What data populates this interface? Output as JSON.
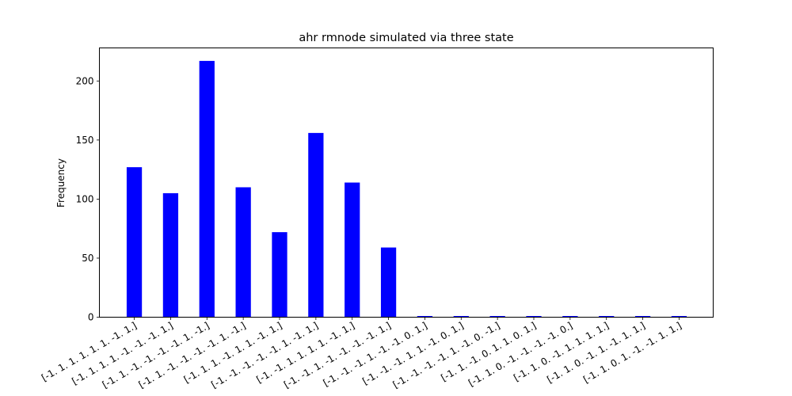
{
  "chart_data": {
    "type": "bar",
    "title": "ahr rmnode simulated via three state",
    "xlabel": "",
    "ylabel": "Frequency",
    "ylim": [
      0,
      228
    ],
    "yticks": [
      0,
      50,
      100,
      150,
      200
    ],
    "bar_color": "#0000ff",
    "grid": false,
    "legend": "none",
    "categories": [
      "[-1. 1. 1. 1. 1. 1. -1. 1.]",
      "[-1. 1. 1. 1. -1. -1. -1. 1.]",
      "[-1. 1. -1. -1. -1. -1. 1. -1.]",
      "[-1. 1. -1. -1. -1. -1. 1. -1.]",
      "[-1. 1. 1. -1. 1. 1. -1. 1.]",
      "[-1. -1. -1. -1. -1. 1. -1. 1.]",
      "[-1. -1. 1. 1. 1. 1. -1. 1.]",
      "[-1. -1. 1. -1. -1. -1. -1. 1.]",
      "[-1. -1. -1. 1. -1. -1. 0. 1.]",
      "[-1. -1. -1. 1. 1. -1. 0. 1.]",
      "[-1. -1. -1. -1. 1. -1. 0. -1.]",
      "[-1. 1. -1. 0. 1. 1. 0. 1.]",
      "[-1. 1. 0. -1. -1. -1. -1. 0.]",
      "[-1. 1. 0. -1. 1. 1. 1. 1.]",
      "[-1. 1. 0. -1. 1. -1. 1. 1.]",
      "[-1. 1. 0. 1. -1. -1. 1. 1.]"
    ],
    "values": [
      127,
      105,
      217,
      110,
      72,
      156,
      114,
      59,
      1,
      1,
      1,
      1,
      1,
      1,
      1,
      1
    ]
  }
}
